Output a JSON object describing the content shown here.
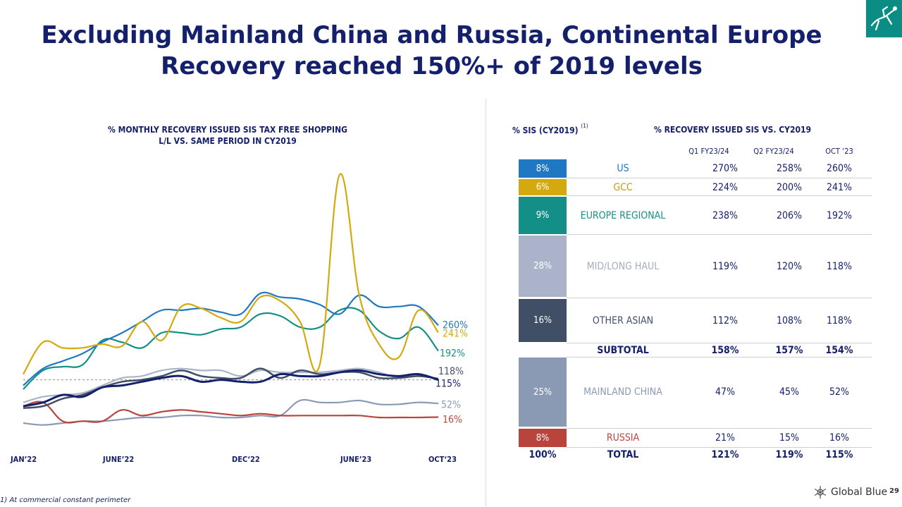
{
  "title": {
    "line1": "Excluding Mainland China and Russia, Continental Europe",
    "line2": "Recovery reached 150%+ of 2019 levels"
  },
  "chart_title": {
    "line1": "% MONTHLY RECOVERY ISSUED SIS TAX FREE SHOPPING",
    "line2": "L/L VS. SAME PERIOD IN CY2019"
  },
  "table": {
    "sis_header": "% SIS (CY2019)",
    "sis_note": "(1)",
    "recovery_header": "% RECOVERY ISSUED SIS VS. CY2019",
    "columns": [
      "Q1 FY23/24",
      "Q2 FY23/24",
      "OCT ‘23"
    ],
    "rows": [
      {
        "share": "8%",
        "label": "US",
        "q1": "270%",
        "q2": "258%",
        "oct": "260%"
      },
      {
        "share": "6%",
        "label": "GCC",
        "q1": "224%",
        "q2": "200%",
        "oct": "241%"
      },
      {
        "share": "9%",
        "label": "EUROPE REGIONAL",
        "q1": "238%",
        "q2": "206%",
        "oct": "192%"
      },
      {
        "share": "28%",
        "label": "MID/LONG HAUL",
        "q1": "119%",
        "q2": "120%",
        "oct": "118%"
      },
      {
        "share": "16%",
        "label": "OTHER ASIAN",
        "q1": "112%",
        "q2": "108%",
        "oct": "118%"
      },
      {
        "share": "",
        "label": "SUBTOTAL",
        "q1": "158%",
        "q2": "157%",
        "oct": "154%"
      },
      {
        "share": "25%",
        "label": "MAINLAND CHINA",
        "q1": "47%",
        "q2": "45%",
        "oct": "52%"
      },
      {
        "share": "8%",
        "label": "RUSSIA",
        "q1": "21%",
        "q2": "15%",
        "oct": "16%"
      },
      {
        "share": "100%",
        "label": "TOTAL",
        "q1": "121%",
        "q2": "119%",
        "oct": "115%"
      }
    ]
  },
  "colors": {
    "us": "#1f78c1",
    "gcc": "#d4a90f",
    "europe": "#148f87",
    "midlong": "#aab3c9",
    "otherasian": "#414f66",
    "china": "#8a9ab5",
    "russia": "#b9443b",
    "total": "#14206b",
    "brand_teal": "#0b8c85"
  },
  "chart_data": {
    "type": "line",
    "title": "% MONTHLY RECOVERY ISSUED SIS TAX FREE SHOPPING L/L VS. SAME PERIOD IN CY2019",
    "x_tick_labels": [
      "JAN’22",
      "JUNE’22",
      "DEC‘22",
      "JUNE’23",
      "OCT‘23"
    ],
    "x": [
      "Jan-22",
      "Feb-22",
      "Mar-22",
      "Apr-22",
      "May-22",
      "Jun-22",
      "Jul-22",
      "Aug-22",
      "Sep-22",
      "Oct-22",
      "Nov-22",
      "Dec-22",
      "Jan-23",
      "Feb-23",
      "Mar-23",
      "Apr-23",
      "May-23",
      "Jun-23",
      "Jul-23",
      "Aug-23",
      "Sep-23",
      "Oct-23"
    ],
    "ylim": [
      0,
      660
    ],
    "reference_line": 115,
    "series": [
      {
        "name": "US",
        "end_label": "260%",
        "values": [
          100,
          145,
          165,
          185,
          215,
          240,
          270,
          300,
          300,
          305,
          295,
          290,
          345,
          335,
          330,
          315,
          290,
          340,
          310,
          310,
          310,
          260
        ]
      },
      {
        "name": "GCC",
        "end_label": "241%",
        "values": [
          130,
          215,
          200,
          200,
          210,
          205,
          270,
          220,
          310,
          305,
          280,
          270,
          335,
          325,
          270,
          155,
          660,
          340,
          210,
          175,
          300,
          241
        ]
      },
      {
        "name": "Europe Regional",
        "end_label": "192%",
        "values": [
          90,
          140,
          150,
          155,
          220,
          215,
          200,
          240,
          240,
          235,
          250,
          255,
          290,
          285,
          255,
          255,
          300,
          300,
          245,
          225,
          255,
          192
        ]
      },
      {
        "name": "Mid/Long Haul",
        "end_label": "118%",
        "values": [
          55,
          70,
          75,
          80,
          100,
          120,
          125,
          140,
          145,
          140,
          140,
          125,
          140,
          135,
          135,
          135,
          140,
          145,
          135,
          120,
          125,
          118
        ]
      },
      {
        "name": "Other Asian",
        "end_label": "118%",
        "values": [
          40,
          45,
          65,
          75,
          95,
          110,
          115,
          125,
          140,
          125,
          120,
          120,
          145,
          120,
          140,
          130,
          135,
          135,
          120,
          120,
          125,
          118
        ]
      },
      {
        "name": "Total",
        "end_label": "115%",
        "values": [
          45,
          55,
          75,
          70,
          95,
          100,
          110,
          120,
          125,
          110,
          115,
          110,
          110,
          130,
          125,
          125,
          135,
          140,
          130,
          125,
          130,
          115
        ]
      },
      {
        "name": "Mainland China",
        "end_label": "52%",
        "values": [
          0,
          -5,
          0,
          5,
          5,
          10,
          15,
          15,
          20,
          20,
          15,
          15,
          20,
          20,
          60,
          55,
          55,
          60,
          50,
          50,
          55,
          52
        ]
      },
      {
        "name": "Russia",
        "end_label": "16%",
        "values": [
          45,
          55,
          5,
          5,
          5,
          35,
          20,
          30,
          35,
          30,
          25,
          20,
          25,
          20,
          20,
          20,
          20,
          20,
          15,
          15,
          15,
          16
        ]
      }
    ]
  },
  "footnote": "1) At commercial constant perimeter",
  "brand": {
    "name": "Global Blue",
    "page_number": "29"
  }
}
